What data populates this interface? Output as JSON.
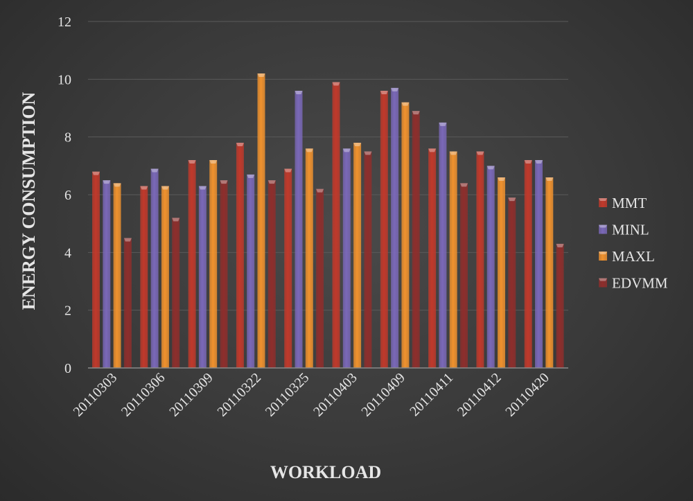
{
  "chart_data": {
    "type": "bar",
    "title": "",
    "xlabel": "WORKLOAD",
    "ylabel": "ENERGY CONSUMPTION",
    "ylim": [
      0,
      12
    ],
    "yticks": [
      0,
      2,
      4,
      6,
      8,
      10,
      12
    ],
    "grid": true,
    "legend_position": "right",
    "categories": [
      "20110303",
      "20110306",
      "20110309",
      "20110322",
      "20110325",
      "20110403",
      "20110409",
      "20110411",
      "20110412",
      "20110420"
    ],
    "series": [
      {
        "name": "MMT",
        "color": "#c0392b",
        "values": [
          6.8,
          6.3,
          7.2,
          7.8,
          6.9,
          9.9,
          9.6,
          7.6,
          7.5,
          7.2
        ]
      },
      {
        "name": "MINL",
        "color": "#7a68b8",
        "values": [
          6.5,
          6.9,
          6.3,
          6.7,
          9.6,
          7.6,
          9.7,
          8.5,
          7.0,
          7.2
        ]
      },
      {
        "name": "MAXL",
        "color": "#f0922e",
        "values": [
          6.4,
          6.3,
          7.2,
          10.2,
          7.6,
          7.8,
          9.2,
          7.5,
          6.6,
          6.6
        ]
      },
      {
        "name": "EDVMM",
        "color": "#8e2e2c",
        "values": [
          4.5,
          5.2,
          6.5,
          6.5,
          6.2,
          7.5,
          8.9,
          6.4,
          5.9,
          4.3
        ]
      }
    ]
  }
}
